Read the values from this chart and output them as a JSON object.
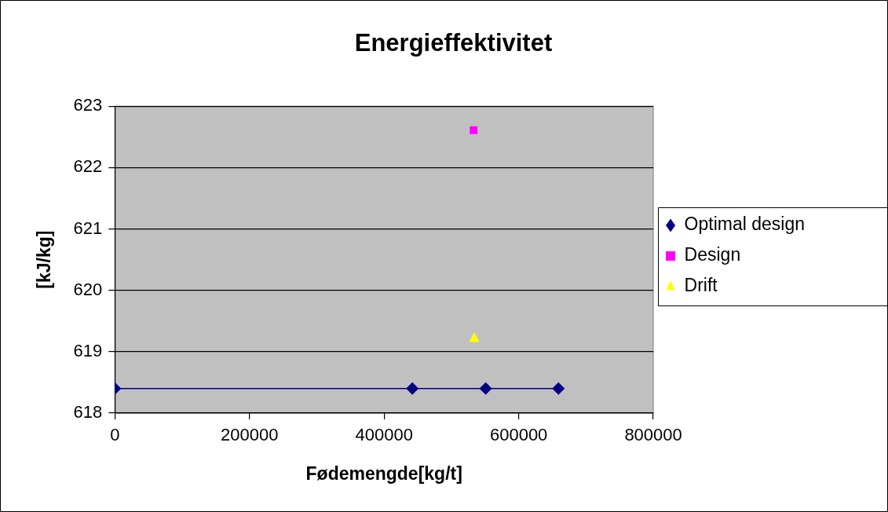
{
  "chart_data": {
    "type": "scatter",
    "title": "Energieffektivitet",
    "xlabel": "Fødemengde[kg/t]",
    "ylabel": "[kJ/kg]",
    "xlim": [
      0,
      800000
    ],
    "xticks": [
      0,
      200000,
      400000,
      600000,
      800000
    ],
    "ylim": [
      618,
      623
    ],
    "yticks": [
      618,
      619,
      620,
      621,
      622,
      623
    ],
    "grid": "y",
    "legend": "right",
    "series": [
      {
        "name": "Optimal design",
        "type": "line",
        "color": "#000080",
        "marker": "diamond",
        "x": [
          0,
          442000,
          551000,
          659000
        ],
        "values": [
          618.4,
          618.4,
          618.4,
          618.4
        ]
      },
      {
        "name": "Design",
        "color": "#ff00ff",
        "marker": "square",
        "x": [
          533000
        ],
        "values": [
          622.61
        ]
      },
      {
        "name": "Drift",
        "color": "#ffff00",
        "marker": "triangle",
        "x": [
          534000
        ],
        "values": [
          619.21
        ]
      }
    ]
  }
}
